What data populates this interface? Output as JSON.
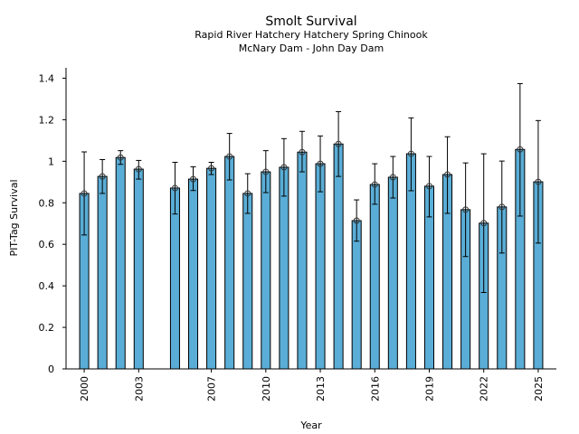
{
  "chart_data": {
    "type": "bar",
    "title": "Smolt Survival",
    "subtitle": [
      "Rapid River Hatchery Hatchery Spring Chinook",
      "McNary Dam - John Day Dam"
    ],
    "xlabel": "Year",
    "ylabel": "PIT-Tag Survival",
    "xlim": [
      1999,
      2026
    ],
    "ylim": [
      0,
      1.45
    ],
    "xticks": [
      2000,
      2003,
      2007,
      2010,
      2013,
      2016,
      2019,
      2022,
      2025
    ],
    "yticks": [
      0,
      0.2,
      0.4,
      0.6,
      0.8,
      1,
      1.2,
      1.4
    ],
    "ytick_labels": [
      "0",
      "0.2",
      "0.4",
      "0.6",
      "0.8",
      "1",
      "1.2",
      "1.4"
    ],
    "grid": false,
    "bar_color": "#5aadd6",
    "x": [
      2000,
      2001,
      2002,
      2003,
      2005,
      2006,
      2007,
      2008,
      2009,
      2010,
      2011,
      2012,
      2013,
      2014,
      2015,
      2016,
      2017,
      2018,
      2019,
      2020,
      2021,
      2022,
      2023,
      2024,
      2025
    ],
    "values": [
      0.845,
      0.927,
      1.018,
      0.962,
      0.871,
      0.914,
      0.966,
      1.023,
      0.845,
      0.949,
      0.971,
      1.044,
      0.988,
      1.083,
      0.714,
      0.888,
      0.923,
      1.036,
      0.88,
      0.936,
      0.767,
      0.702,
      0.78,
      1.057,
      0.901
    ],
    "upper": [
      1.045,
      1.008,
      1.051,
      1.004,
      0.995,
      0.973,
      0.995,
      1.134,
      0.94,
      1.051,
      1.109,
      1.144,
      1.122,
      1.239,
      0.814,
      0.988,
      1.023,
      1.209,
      1.023,
      1.118,
      0.992,
      1.036,
      1.001,
      1.374,
      1.196
    ],
    "lower": [
      0.645,
      0.845,
      0.985,
      0.914,
      0.746,
      0.859,
      0.936,
      0.91,
      0.749,
      0.849,
      0.832,
      0.949,
      0.853,
      0.927,
      0.615,
      0.793,
      0.823,
      0.858,
      0.732,
      0.749,
      0.541,
      0.368,
      0.558,
      0.736,
      0.606
    ]
  }
}
